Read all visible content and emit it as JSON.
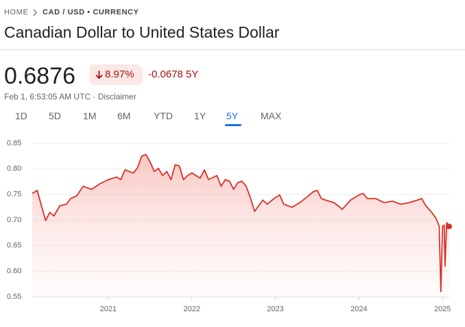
{
  "breadcrumb": [
    "HOME",
    "CAD / USD • CURRENCY"
  ],
  "title": "Canadian Dollar to United States Dollar",
  "price": "0.6876",
  "change_percent": "8.97%",
  "change_absolute": "-0.0678 5Y",
  "timestamp": "Feb 1, 6:53:05 AM UTC · Disclaimer",
  "tabs": [
    {
      "label": "1D"
    },
    {
      "label": "5D"
    },
    {
      "label": "1M"
    },
    {
      "label": "6M"
    },
    {
      "label": "YTD"
    },
    {
      "label": "1Y"
    },
    {
      "label": "5Y",
      "selected": true
    },
    {
      "label": "MAX"
    }
  ],
  "chart_data": {
    "type": "line",
    "x": [
      2020.09,
      2020.15,
      2020.2,
      2020.25,
      2020.3,
      2020.35,
      2020.42,
      2020.5,
      2020.55,
      2020.62,
      2020.7,
      2020.8,
      2020.9,
      2021.0,
      2021.1,
      2021.15,
      2021.2,
      2021.3,
      2021.35,
      2021.4,
      2021.45,
      2021.5,
      2021.55,
      2021.6,
      2021.65,
      2021.7,
      2021.75,
      2021.8,
      2021.85,
      2021.9,
      2021.95,
      2022.0,
      2022.1,
      2022.15,
      2022.2,
      2022.3,
      2022.35,
      2022.4,
      2022.45,
      2022.5,
      2022.55,
      2022.6,
      2022.65,
      2022.7,
      2022.75,
      2022.8,
      2022.85,
      2022.9,
      2023.0,
      2023.05,
      2023.1,
      2023.2,
      2023.3,
      2023.4,
      2023.45,
      2023.5,
      2023.55,
      2023.6,
      2023.7,
      2023.75,
      2023.8,
      2023.9,
      2024.0,
      2024.05,
      2024.1,
      2024.2,
      2024.3,
      2024.4,
      2024.5,
      2024.6,
      2024.7,
      2024.75,
      2024.8,
      2024.87,
      2024.92,
      2024.96,
      2024.98,
      2025.0,
      2025.02,
      2025.03,
      2025.05,
      2025.08
    ],
    "series": [
      {
        "name": "CAD / USD",
        "color": "#d93025",
        "values": [
          0.752,
          0.758,
          0.728,
          0.699,
          0.715,
          0.708,
          0.728,
          0.731,
          0.742,
          0.747,
          0.766,
          0.76,
          0.771,
          0.779,
          0.784,
          0.779,
          0.798,
          0.792,
          0.802,
          0.825,
          0.828,
          0.814,
          0.795,
          0.801,
          0.787,
          0.795,
          0.779,
          0.808,
          0.806,
          0.779,
          0.787,
          0.792,
          0.782,
          0.798,
          0.779,
          0.787,
          0.766,
          0.779,
          0.776,
          0.76,
          0.773,
          0.776,
          0.766,
          0.744,
          0.717,
          0.728,
          0.739,
          0.731,
          0.744,
          0.749,
          0.731,
          0.725,
          0.735,
          0.748,
          0.755,
          0.758,
          0.742,
          0.739,
          0.734,
          0.728,
          0.721,
          0.739,
          0.749,
          0.752,
          0.742,
          0.742,
          0.734,
          0.737,
          0.731,
          0.734,
          0.739,
          0.742,
          0.728,
          0.715,
          0.704,
          0.688,
          0.56,
          0.688,
          0.69,
          0.61,
          0.695,
          0.6876
        ]
      }
    ],
    "xlim": [
      2020.09,
      2025.08
    ],
    "xticks": [
      2021,
      2022,
      2023,
      2024,
      2025
    ],
    "ylim": [
      0.55,
      0.85
    ],
    "yticks": [
      0.55,
      {
        "value": 0.6,
        "label": "0.60"
      },
      0.65,
      {
        "value": 0.7,
        "label": "0.70"
      },
      0.75,
      {
        "value": 0.8,
        "label": "0.80"
      },
      0.85
    ],
    "grid": true
  }
}
